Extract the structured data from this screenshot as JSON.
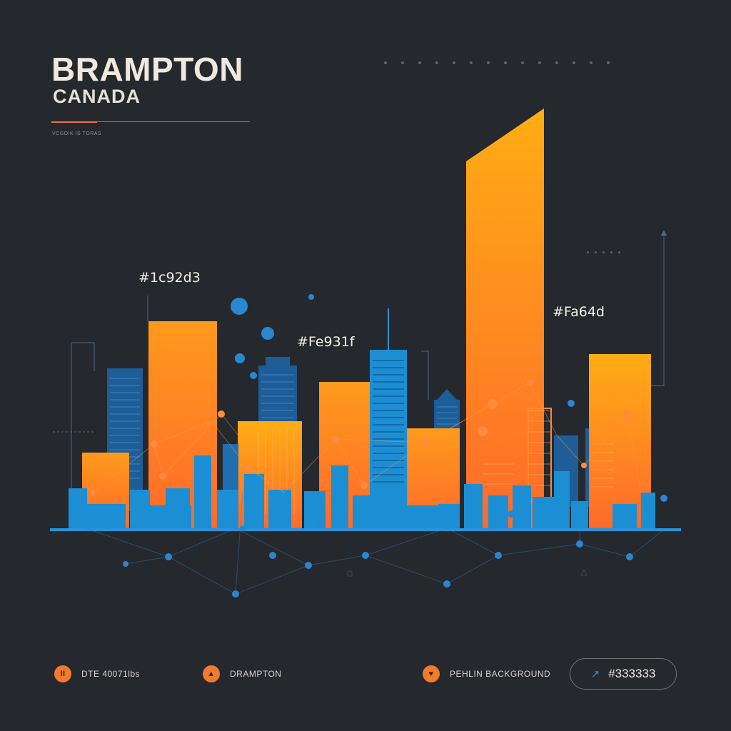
{
  "header": {
    "title": "BRAMPTON",
    "subtitle": "CANADA",
    "caption": "VCGOIK IS TORAS"
  },
  "color_labels": {
    "blue": "#1c92d3",
    "mid_orange": "#Fe931f",
    "tall_orange": "#Fa64d"
  },
  "palette": {
    "background": "#25282d",
    "orange_light": "#ffad14",
    "orange_dark": "#ff6a2b",
    "blue": "#1c92d3",
    "dark_blue": "#1e5f9a"
  },
  "footer": {
    "items": [
      {
        "icon": "pause-icon",
        "glyph": "II",
        "label": "DTE 40071lbs"
      },
      {
        "icon": "location-pin-icon",
        "glyph": "▲",
        "label": "DRAMPTON"
      },
      {
        "icon": "heart-icon",
        "glyph": "♥",
        "label": "PEHLIN BACKGROUND"
      }
    ],
    "hex_pill": {
      "icon": "pen-icon",
      "label": "#333333"
    }
  }
}
